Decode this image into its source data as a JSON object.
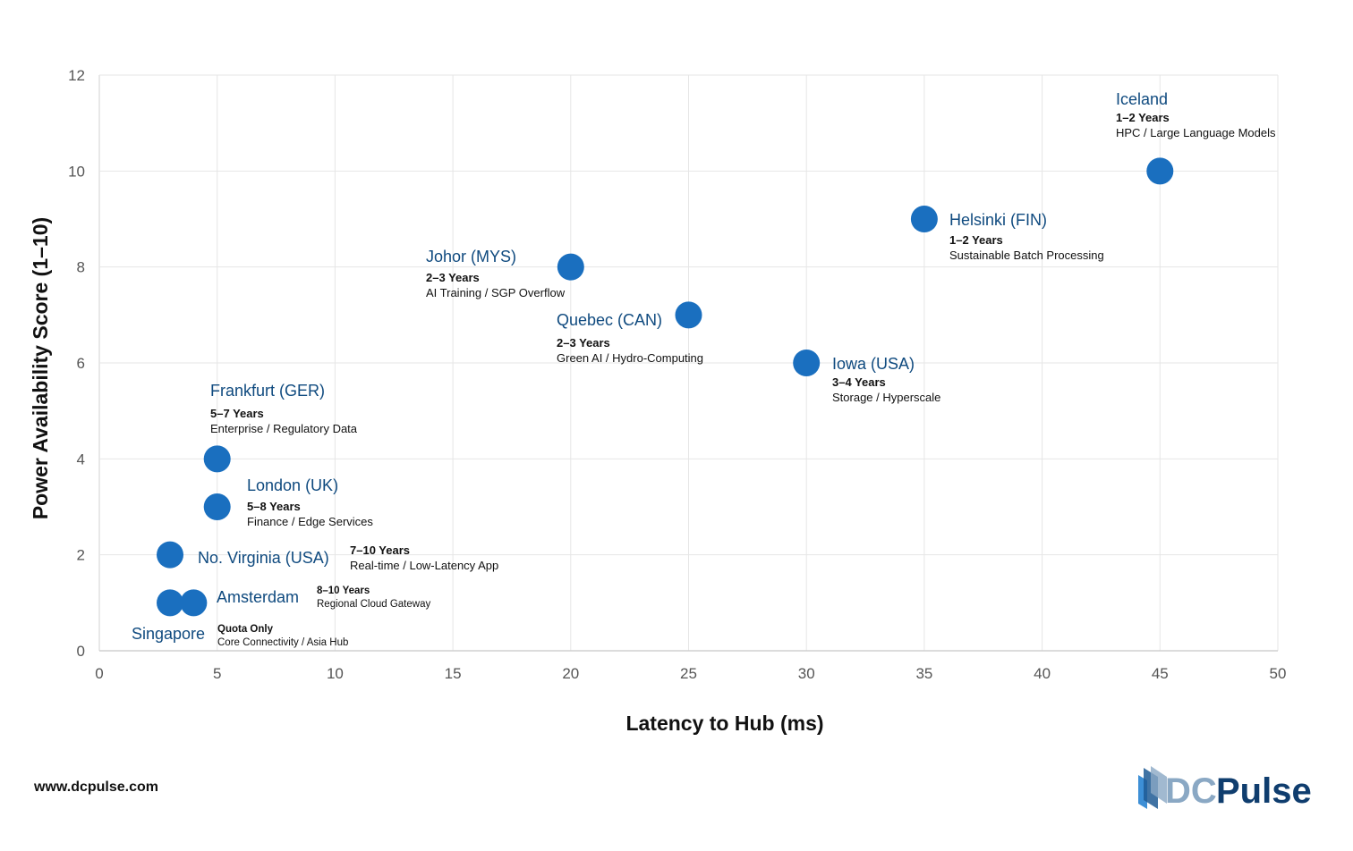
{
  "chart_data": {
    "type": "scatter",
    "xlabel": "Latency to Hub (ms)",
    "ylabel": "Power Availability Score (1–10)",
    "xlim": [
      0,
      50
    ],
    "ylim": [
      0,
      12
    ],
    "xticks": [
      0,
      5,
      10,
      15,
      20,
      25,
      30,
      35,
      40,
      45,
      50
    ],
    "yticks": [
      0,
      2,
      4,
      6,
      8,
      10,
      12
    ],
    "grid": true,
    "point_color": "#1a6fbf",
    "label_color": "#0f4a7f",
    "points": [
      {
        "name": "Iceland",
        "x": 45,
        "y": 10,
        "timeline": "1–2 Years",
        "use_case": "HPC / Large Language Models"
      },
      {
        "name": "Helsinki (FIN)",
        "x": 35,
        "y": 9,
        "timeline": "1–2 Years",
        "use_case": "Sustainable Batch Processing"
      },
      {
        "name": "Johor (MYS)",
        "x": 20,
        "y": 8,
        "timeline": "2–3 Years",
        "use_case": "AI Training / SGP Overflow"
      },
      {
        "name": "Quebec (CAN)",
        "x": 25,
        "y": 7,
        "timeline": "2–3 Years",
        "use_case": "Green AI / Hydro-Computing"
      },
      {
        "name": "Iowa (USA)",
        "x": 30,
        "y": 6,
        "timeline": "3–4 Years",
        "use_case": "Storage / Hyperscale"
      },
      {
        "name": "Frankfurt (GER)",
        "x": 5,
        "y": 4,
        "timeline": "5–7 Years",
        "use_case": "Enterprise / Regulatory Data"
      },
      {
        "name": "London (UK)",
        "x": 5,
        "y": 3,
        "timeline": "5–8 Years",
        "use_case": "Finance / Edge Services"
      },
      {
        "name": "No. Virginia (USA)",
        "x": 3,
        "y": 2,
        "timeline": "7–10 Years",
        "use_case": "Real-time / Low-Latency App"
      },
      {
        "name": "Amsterdam",
        "x": 4,
        "y": 1,
        "timeline": "8–10 Years",
        "use_case": "Regional Cloud Gateway"
      },
      {
        "name": "Singapore",
        "x": 3,
        "y": 1,
        "timeline": "Quota Only",
        "use_case": "Core Connectivity / Asia Hub"
      }
    ]
  },
  "footer": {
    "website": "www.dcpulse.com",
    "logo_text": "DCPulse"
  }
}
